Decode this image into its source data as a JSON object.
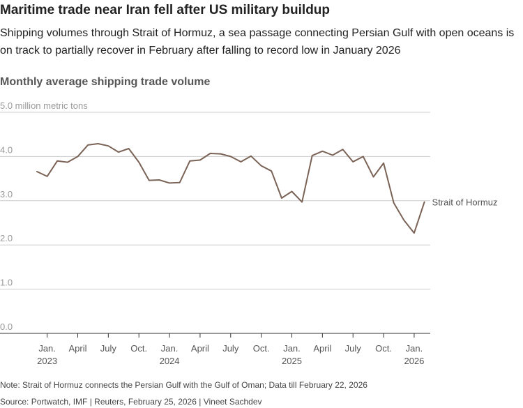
{
  "header": {
    "title": "Maritime trade near Iran fell after US military buildup",
    "subtitle": "Shipping volumes through Strait of Hormuz, a sea passage connecting Persian Gulf with open oceans is on track to partially recover in February after falling to record low in January 2026"
  },
  "footer": {
    "note": "Note: Strait of Hormuz connects the Persian Gulf with the Gulf of Oman; Data till February 22, 2026",
    "source": "Source: Portwatch, IMF | Reuters, February 25, 2026  | Vineet Sachdev"
  },
  "colors": {
    "series": "#7a6356",
    "grid": "#cccccc",
    "axis": "#333333",
    "tick_text": "#555555",
    "unit_text": "#999999"
  },
  "chart_data": {
    "type": "line",
    "title": "Monthly average shipping trade volume",
    "ylabel": "million metric tons",
    "ylim": [
      0,
      5
    ],
    "y_ticks": [
      {
        "value": 5,
        "label": "5.0 million metric tons"
      },
      {
        "value": 4,
        "label": "4.0"
      },
      {
        "value": 3,
        "label": "3.0"
      },
      {
        "value": 2,
        "label": "2.0"
      },
      {
        "value": 1,
        "label": "1.0"
      },
      {
        "value": 0,
        "label": "0.0"
      }
    ],
    "x_ticks": [
      {
        "index": 1,
        "label": "Jan.",
        "year": "2023"
      },
      {
        "index": 4,
        "label": "April"
      },
      {
        "index": 7,
        "label": "July"
      },
      {
        "index": 10,
        "label": "Oct."
      },
      {
        "index": 13,
        "label": "Jan.",
        "year": "2024"
      },
      {
        "index": 16,
        "label": "April"
      },
      {
        "index": 19,
        "label": "July"
      },
      {
        "index": 22,
        "label": "Oct."
      },
      {
        "index": 25,
        "label": "Jan.",
        "year": "2025"
      },
      {
        "index": 28,
        "label": "April"
      },
      {
        "index": 31,
        "label": "July"
      },
      {
        "index": 34,
        "label": "Oct."
      },
      {
        "index": 37,
        "label": "Jan.",
        "year": "2026"
      }
    ],
    "series": [
      {
        "name": "Strait of Hormuz",
        "values": [
          3.66,
          3.55,
          3.9,
          3.87,
          4.0,
          4.26,
          4.29,
          4.24,
          4.1,
          4.18,
          3.87,
          3.46,
          3.47,
          3.4,
          3.41,
          3.9,
          3.92,
          4.07,
          4.06,
          4.0,
          3.88,
          4.01,
          3.79,
          3.67,
          3.06,
          3.21,
          2.97,
          4.02,
          4.12,
          4.03,
          4.16,
          3.88,
          4.0,
          3.54,
          3.85,
          2.95,
          2.56,
          2.27,
          2.97
        ]
      }
    ]
  }
}
